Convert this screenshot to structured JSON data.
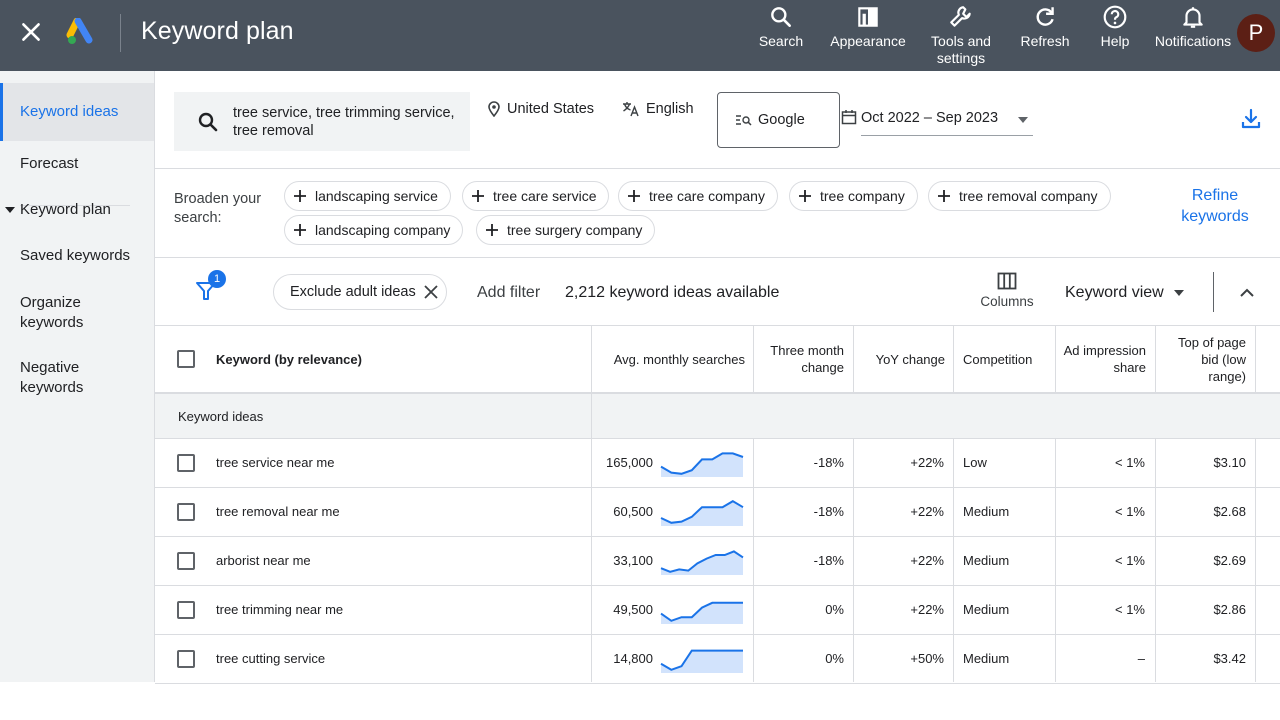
{
  "topbar": {
    "title": "Keyword plan",
    "actions": [
      {
        "label": "Search",
        "icon": "search-icon"
      },
      {
        "label": "Appearance",
        "icon": "appearance-icon"
      },
      {
        "label": "Tools and settings",
        "icon": "wrench-icon"
      },
      {
        "label": "Refresh",
        "icon": "refresh-icon"
      },
      {
        "label": "Help",
        "icon": "help-icon"
      },
      {
        "label": "Notifications",
        "icon": "bell-icon"
      }
    ],
    "avatar_initial": "P",
    "colors": {
      "bar": "#4a535e",
      "avatar": "#5c1f15"
    }
  },
  "sidebar": {
    "items": [
      {
        "label": "Keyword ideas",
        "active": true
      },
      {
        "label": "Forecast"
      },
      {
        "label": "Keyword plan"
      },
      {
        "label": "Saved keywords"
      },
      {
        "label": "Organize keywords"
      },
      {
        "label": "Negative keywords"
      }
    ]
  },
  "filters": {
    "search_text": "tree service, tree trimming service, tree removal",
    "location": "United States",
    "language": "English",
    "network": "Google",
    "date_range": "Oct 2022 – Sep 2023"
  },
  "broaden": {
    "label": "Broaden your search:",
    "chips": [
      "landscaping service",
      "tree care service",
      "tree care company",
      "tree company",
      "tree removal company",
      "landscaping company",
      "tree surgery company"
    ],
    "refine_label": "Refine keywords"
  },
  "toolbar": {
    "filter_badge": "1",
    "exclude_chip": "Exclude adult ideas",
    "add_filter": "Add filter",
    "ideas_count": "2,212 keyword ideas available",
    "columns_label": "Columns",
    "view_label": "Keyword view"
  },
  "table": {
    "headers": {
      "keyword": "Keyword (by relevance)",
      "avg": "Avg. monthly searches",
      "three_month": "Three month change",
      "yoy": "YoY change",
      "competition": "Competition",
      "ad_share": "Ad impression share",
      "top_bid": "Top of page bid (low range)"
    },
    "group_label": "Keyword ideas",
    "rows": [
      {
        "keyword": "tree service near me",
        "avg": "165,000",
        "three_month": "-18%",
        "yoy": "+22%",
        "competition": "Low",
        "ad_share": "< 1%",
        "top_bid": "$3.10",
        "trend": [
          0.35,
          0.1,
          0.05,
          0.2,
          0.65,
          0.65,
          0.9,
          0.9,
          0.75
        ]
      },
      {
        "keyword": "tree removal near me",
        "avg": "60,500",
        "three_month": "-18%",
        "yoy": "+22%",
        "competition": "Medium",
        "ad_share": "< 1%",
        "top_bid": "$2.68",
        "trend": [
          0.25,
          0.05,
          0.1,
          0.3,
          0.7,
          0.7,
          0.7,
          0.95,
          0.7
        ]
      },
      {
        "keyword": "arborist near me",
        "avg": "33,100",
        "three_month": "-18%",
        "yoy": "+22%",
        "competition": "Medium",
        "ad_share": "< 1%",
        "top_bid": "$2.69",
        "trend": [
          0.2,
          0.05,
          0.15,
          0.1,
          0.4,
          0.6,
          0.75,
          0.75,
          0.9,
          0.65
        ]
      },
      {
        "keyword": "tree trimming near me",
        "avg": "49,500",
        "three_month": "0%",
        "yoy": "+22%",
        "competition": "Medium",
        "ad_share": "< 1%",
        "top_bid": "$2.86",
        "trend": [
          0.35,
          0.05,
          0.2,
          0.2,
          0.6,
          0.8,
          0.8,
          0.8,
          0.8
        ]
      },
      {
        "keyword": "tree cutting service",
        "avg": "14,800",
        "three_month": "0%",
        "yoy": "+50%",
        "competition": "Medium",
        "ad_share": "–",
        "top_bid": "$3.42",
        "trend": [
          0.3,
          0.05,
          0.2,
          0.85,
          0.85,
          0.85,
          0.85,
          0.85,
          0.85
        ]
      }
    ],
    "spark_color": "#1a73e8",
    "spark_fill": "#d2e3fc"
  }
}
